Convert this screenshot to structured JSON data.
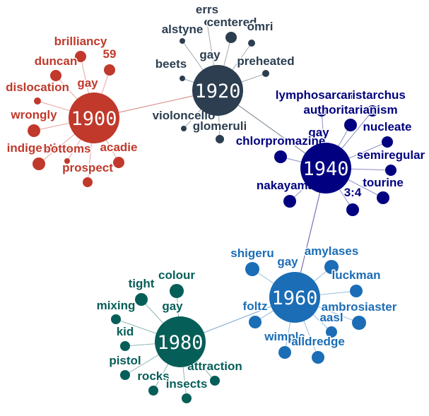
{
  "clusters": [
    {
      "year": "1900",
      "color": "#c0392b",
      "words": [
        "brilliancy",
        "59",
        "duncan",
        "gay",
        "dislocation",
        "wrongly",
        "indigestion",
        "bottoms",
        "acadie",
        "prospect"
      ]
    },
    {
      "year": "1920",
      "color": "#2c3e50",
      "words": [
        "errs",
        "alstyne",
        "centered",
        "omri",
        "gay",
        "beets",
        "preheated",
        "violoncello",
        "glomeruli"
      ]
    },
    {
      "year": "1940",
      "color": "#000080",
      "words": [
        "lymphosarcoma",
        "aristarchus",
        "authoritarianism",
        "nucleate",
        "gay",
        "chlorpromazine",
        "semiregular",
        "tourine",
        "nakayama",
        "3:4"
      ]
    },
    {
      "year": "1960",
      "color": "#1b6db6",
      "words": [
        "shigeru",
        "gay",
        "amylases",
        "luckman",
        "foltz",
        "ambrosiaster",
        "aasl",
        "wimple",
        "alldredge"
      ]
    },
    {
      "year": "1980",
      "color": "#065e58",
      "words": [
        "colour",
        "tight",
        "gay",
        "mixing",
        "kid",
        "pistol",
        "rocks",
        "attraction",
        "insects"
      ]
    }
  ]
}
